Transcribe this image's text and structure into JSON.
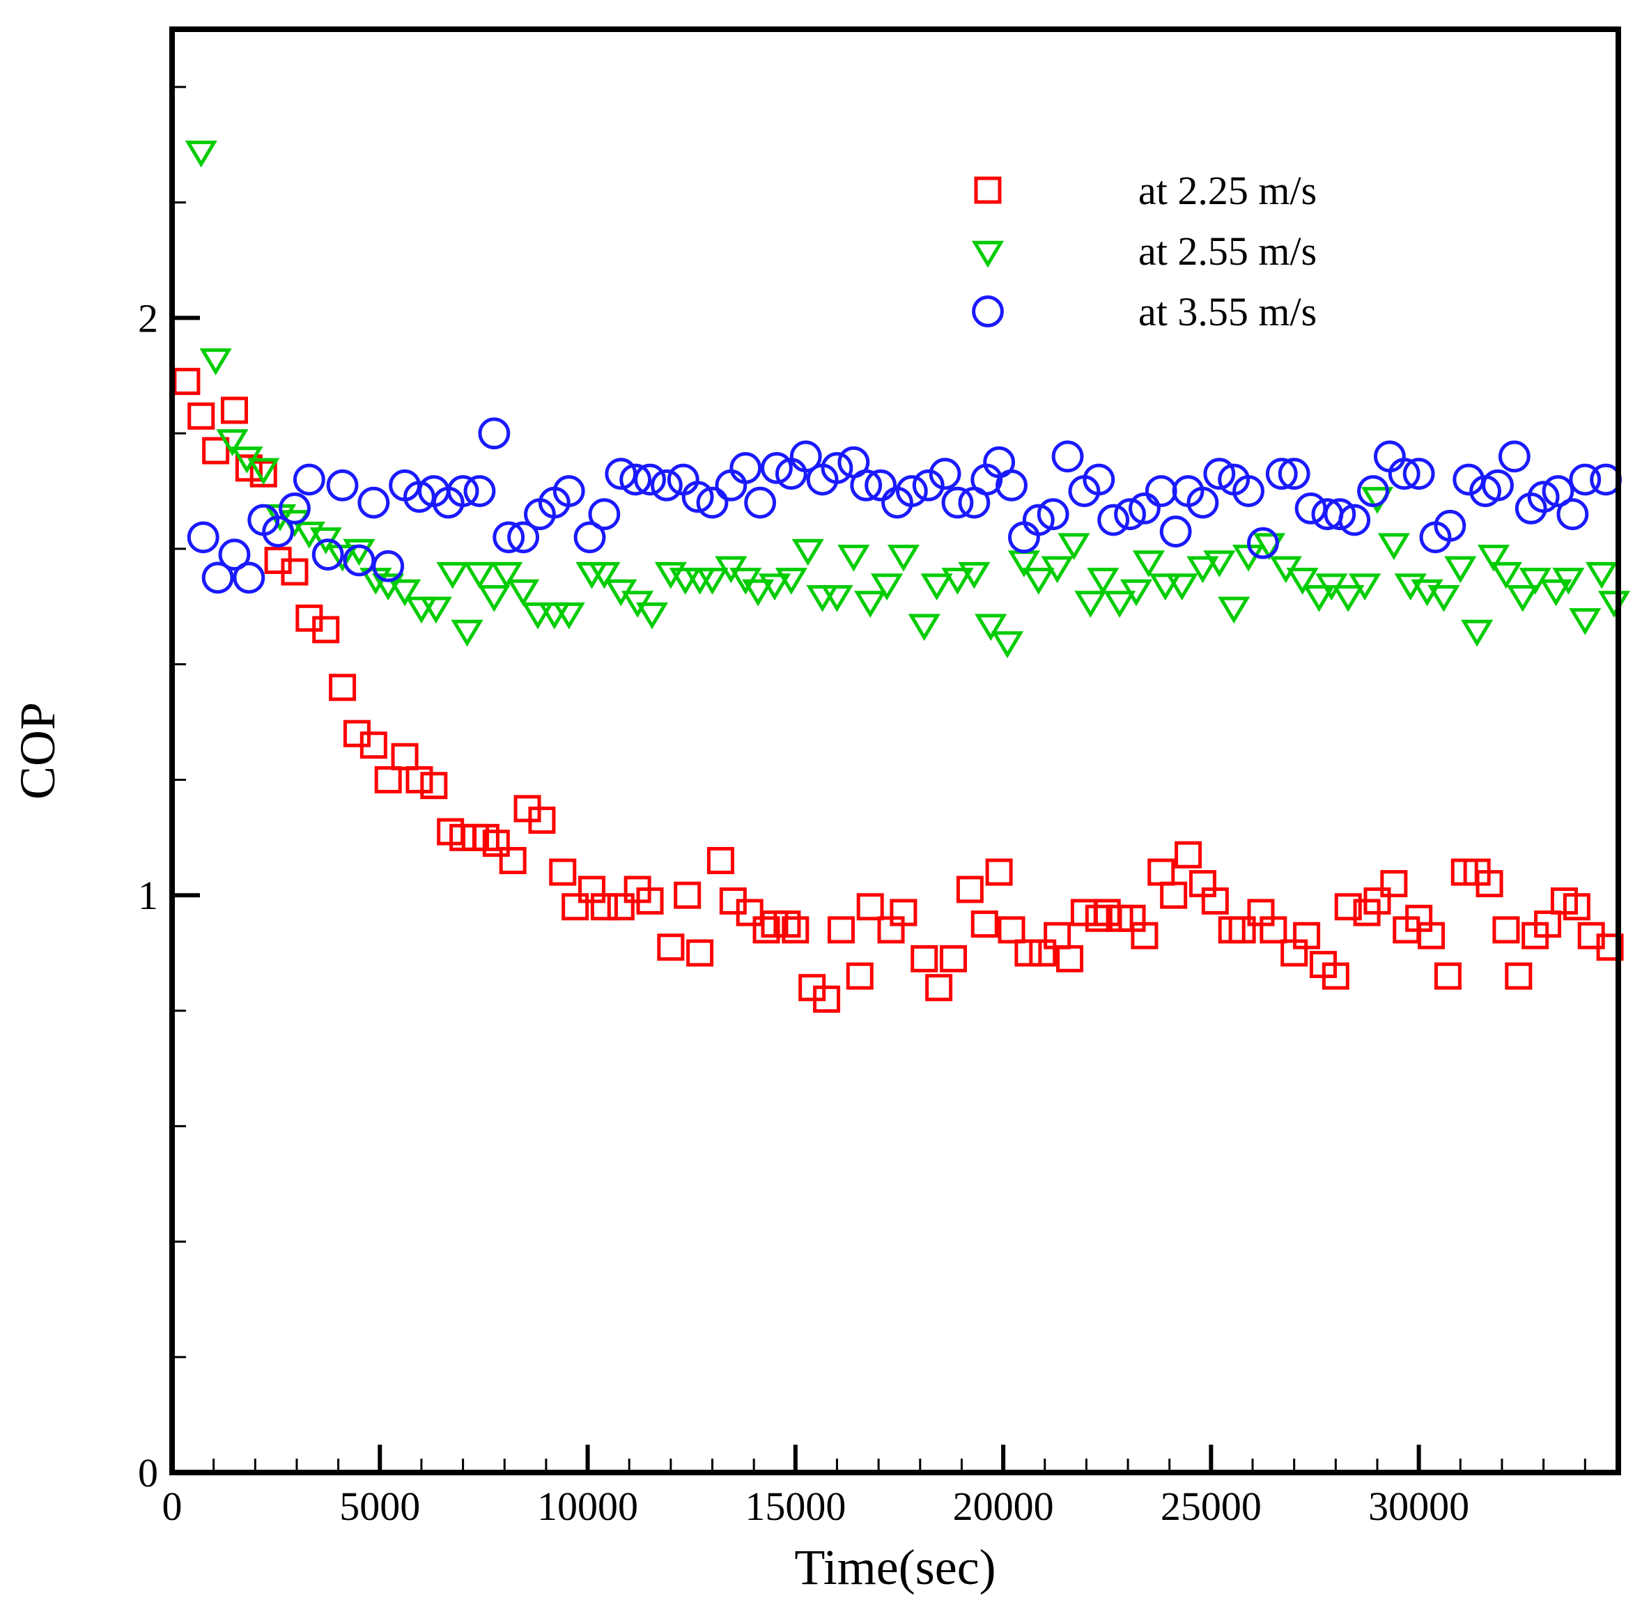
{
  "chart_data": {
    "type": "scatter",
    "title": "",
    "xlabel": "Time(sec)",
    "ylabel": "COP",
    "xlim": [
      0,
      34800
    ],
    "ylim": [
      0,
      2.5
    ],
    "x_ticks": [
      0,
      5000,
      10000,
      15000,
      20000,
      25000,
      30000
    ],
    "x_tick_labels": [
      "0",
      "5000",
      "10000",
      "15000",
      "20000",
      "25000",
      "30000"
    ],
    "x_minor_step": 1000,
    "y_ticks": [
      0,
      1,
      2
    ],
    "y_tick_labels": [
      "0",
      "1",
      "2"
    ],
    "y_minor_step": 0.2,
    "grid": false,
    "legend_position": "top-right",
    "series": [
      {
        "name": "at 2.25 m/s",
        "marker": "square",
        "color": "#ff0000",
        "x": [
          350,
          700,
          1050,
          1500,
          1850,
          2200,
          2550,
          2950,
          3300,
          3700,
          4100,
          4450,
          4850,
          5200,
          5600,
          5950,
          6300,
          6700,
          7000,
          7300,
          7550,
          7800,
          8200,
          8550,
          8900,
          9400,
          9700,
          10100,
          10400,
          10800,
          11200,
          11500,
          12000,
          12400,
          12700,
          13200,
          13500,
          13900,
          14300,
          14500,
          14800,
          15000,
          15400,
          15750,
          16100,
          16550,
          16800,
          17300,
          17600,
          18100,
          18450,
          18800,
          19200,
          19550,
          19900,
          20200,
          20600,
          20950,
          21300,
          21600,
          21950,
          22300,
          22500,
          22800,
          23100,
          23400,
          23800,
          24100,
          24450,
          24800,
          25100,
          25500,
          25750,
          26200,
          26500,
          27000,
          27300,
          27700,
          28000,
          28300,
          28750,
          29000,
          29400,
          29700,
          30000,
          30300,
          30700,
          31100,
          31400,
          31700,
          32100,
          32400,
          32800,
          33100,
          33500,
          33800,
          34150,
          34600
        ],
        "y": [
          1.89,
          1.83,
          1.77,
          1.84,
          1.74,
          1.73,
          1.58,
          1.56,
          1.48,
          1.46,
          1.36,
          1.28,
          1.26,
          1.2,
          1.24,
          1.2,
          1.19,
          1.11,
          1.1,
          1.1,
          1.1,
          1.09,
          1.06,
          1.15,
          1.13,
          1.04,
          0.98,
          1.01,
          0.98,
          0.98,
          1.01,
          0.99,
          0.91,
          1.0,
          0.9,
          1.06,
          0.99,
          0.97,
          0.94,
          0.95,
          0.95,
          0.94,
          0.84,
          0.82,
          0.94,
          0.86,
          0.98,
          0.94,
          0.97,
          0.89,
          0.84,
          0.89,
          1.01,
          0.95,
          1.04,
          0.94,
          0.9,
          0.9,
          0.93,
          0.89,
          0.97,
          0.96,
          0.97,
          0.96,
          0.96,
          0.93,
          1.04,
          1.0,
          1.07,
          1.02,
          0.99,
          0.94,
          0.94,
          0.97,
          0.94,
          0.9,
          0.93,
          0.88,
          0.86,
          0.98,
          0.97,
          0.99,
          1.02,
          0.94,
          0.96,
          0.93,
          0.86,
          1.04,
          1.04,
          1.02,
          0.94,
          0.86,
          0.93,
          0.95,
          0.99,
          0.98,
          0.93,
          0.91
        ]
      },
      {
        "name": "at 2.55 m/s",
        "marker": "triangle-down",
        "color": "#00cc00",
        "x": [
          700,
          1050,
          1450,
          1800,
          2200,
          2600,
          2950,
          3300,
          3700,
          4100,
          4500,
          4900,
          5200,
          5600,
          6000,
          6350,
          6750,
          7100,
          7400,
          7750,
          8050,
          8450,
          8800,
          9200,
          9550,
          10100,
          10400,
          10800,
          11200,
          11550,
          12000,
          12350,
          12700,
          13000,
          13450,
          13800,
          14100,
          14500,
          14900,
          15300,
          15650,
          16000,
          16400,
          16800,
          17200,
          17600,
          18100,
          18400,
          18900,
          19300,
          19700,
          20100,
          20500,
          20850,
          21300,
          21700,
          22100,
          22400,
          22800,
          23200,
          23500,
          23900,
          24300,
          24800,
          25200,
          25550,
          25900,
          26400,
          26800,
          27200,
          27600,
          27900,
          28300,
          28700,
          29000,
          29400,
          29800,
          30200,
          30600,
          31000,
          31400,
          31800,
          32100,
          32500,
          32800,
          33300,
          33600,
          34000,
          34400,
          34700
        ],
        "y": [
          2.29,
          1.93,
          1.79,
          1.76,
          1.74,
          1.66,
          1.65,
          1.63,
          1.62,
          1.59,
          1.6,
          1.55,
          1.54,
          1.53,
          1.5,
          1.5,
          1.56,
          1.46,
          1.56,
          1.52,
          1.56,
          1.53,
          1.49,
          1.49,
          1.49,
          1.56,
          1.56,
          1.53,
          1.51,
          1.49,
          1.56,
          1.55,
          1.55,
          1.55,
          1.57,
          1.55,
          1.53,
          1.54,
          1.55,
          1.6,
          1.52,
          1.52,
          1.59,
          1.51,
          1.54,
          1.59,
          1.47,
          1.54,
          1.55,
          1.56,
          1.47,
          1.44,
          1.58,
          1.55,
          1.57,
          1.61,
          1.51,
          1.55,
          1.51,
          1.53,
          1.58,
          1.54,
          1.54,
          1.57,
          1.58,
          1.5,
          1.59,
          1.61,
          1.57,
          1.55,
          1.52,
          1.54,
          1.52,
          1.54,
          1.69,
          1.61,
          1.54,
          1.53,
          1.52,
          1.57,
          1.46,
          1.59,
          1.56,
          1.52,
          1.55,
          1.53,
          1.55,
          1.48,
          1.56,
          1.51
        ]
      },
      {
        "name": "at 3.55 m/s",
        "marker": "circle",
        "color": "#1a1aff",
        "x": [
          750,
          1100,
          1500,
          1850,
          2200,
          2550,
          2950,
          3300,
          3750,
          4100,
          4500,
          4850,
          5200,
          5600,
          5950,
          6300,
          6650,
          7000,
          7400,
          7750,
          8100,
          8450,
          8850,
          9200,
          9550,
          10050,
          10400,
          10800,
          11150,
          11500,
          11900,
          12300,
          12650,
          13000,
          13450,
          13800,
          14150,
          14550,
          14900,
          15250,
          15650,
          16000,
          16400,
          16700,
          17050,
          17450,
          17800,
          18200,
          18600,
          18900,
          19300,
          19600,
          19900,
          20200,
          20500,
          20850,
          21200,
          21550,
          21950,
          22300,
          22650,
          23050,
          23400,
          23800,
          24150,
          24450,
          24800,
          25200,
          25550,
          25900,
          26250,
          26700,
          27000,
          27400,
          27800,
          28100,
          28450,
          28900,
          29300,
          29650,
          30000,
          30400,
          30750,
          31200,
          31600,
          31900,
          32300,
          32700,
          33000,
          33350,
          33700,
          34000,
          34500
        ],
        "y": [
          1.62,
          1.55,
          1.59,
          1.55,
          1.65,
          1.63,
          1.67,
          1.72,
          1.59,
          1.71,
          1.58,
          1.68,
          1.57,
          1.71,
          1.69,
          1.7,
          1.68,
          1.7,
          1.7,
          1.8,
          1.62,
          1.62,
          1.66,
          1.68,
          1.7,
          1.62,
          1.66,
          1.73,
          1.72,
          1.72,
          1.71,
          1.72,
          1.69,
          1.68,
          1.71,
          1.74,
          1.68,
          1.74,
          1.73,
          1.76,
          1.72,
          1.74,
          1.75,
          1.71,
          1.71,
          1.68,
          1.7,
          1.71,
          1.73,
          1.68,
          1.68,
          1.72,
          1.75,
          1.71,
          1.62,
          1.65,
          1.66,
          1.76,
          1.7,
          1.72,
          1.65,
          1.66,
          1.67,
          1.7,
          1.63,
          1.7,
          1.68,
          1.73,
          1.72,
          1.7,
          1.61,
          1.73,
          1.73,
          1.67,
          1.66,
          1.66,
          1.65,
          1.7,
          1.76,
          1.73,
          1.73,
          1.62,
          1.64,
          1.72,
          1.7,
          1.71,
          1.76,
          1.67,
          1.69,
          1.7,
          1.66,
          1.72,
          1.72
        ]
      }
    ]
  }
}
